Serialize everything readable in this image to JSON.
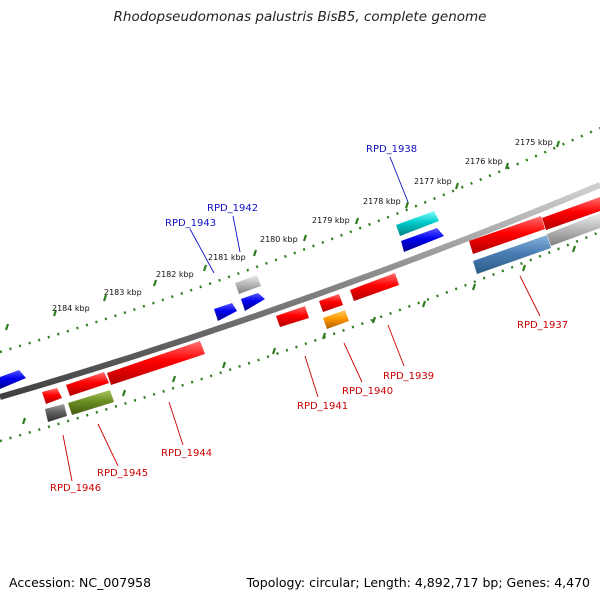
{
  "title": "Rhodopseudomonas palustris BisB5, complete genome",
  "footer": {
    "accession": "Accession: NC_007958",
    "topology": "Topology: circular; Length: 4,892,717 bp; Genes: 4,470"
  },
  "ticks": [
    "2175 kbp",
    "2176 kbp",
    "2177 kbp",
    "2178 kbp",
    "2179 kbp",
    "2180 kbp",
    "2181 kbp",
    "2182 kbp",
    "2183 kbp",
    "2184 kbp"
  ],
  "genes": [
    {
      "id": "RPD_1937",
      "label": "RPD_1937",
      "color": "#cc0000"
    },
    {
      "id": "RPD_1938",
      "label": "RPD_1938",
      "color": "#1010c0"
    },
    {
      "id": "RPD_1939",
      "label": "RPD_1939",
      "color": "#cc0000"
    },
    {
      "id": "RPD_1940",
      "label": "RPD_1940",
      "color": "#cc0000"
    },
    {
      "id": "RPD_1941",
      "label": "RPD_1941",
      "color": "#cc0000"
    },
    {
      "id": "RPD_1942",
      "label": "RPD_1942",
      "color": "#1010c0"
    },
    {
      "id": "RPD_1943",
      "label": "RPD_1943",
      "color": "#1010c0"
    },
    {
      "id": "RPD_1944",
      "label": "RPD_1944",
      "color": "#cc0000"
    },
    {
      "id": "RPD_1945",
      "label": "RPD_1945",
      "color": "#cc0000"
    },
    {
      "id": "RPD_1946",
      "label": "RPD_1946",
      "color": "#cc0000"
    }
  ],
  "colors": {
    "backbone": "#808080",
    "ticks": "#2e7d1e",
    "red": "#ff0000",
    "blue": "#0000ee",
    "cyan": "#00cccc",
    "gray": "#b8b8b8",
    "steelblue": "#4a7fb5",
    "orange": "#ff9900",
    "olive": "#6b8e23",
    "darkgray": "#606060"
  }
}
